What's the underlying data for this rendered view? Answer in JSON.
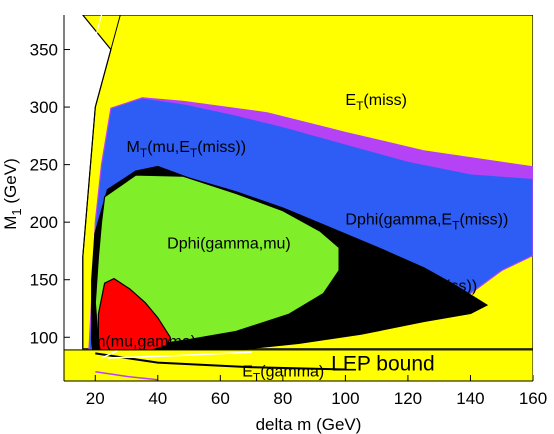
{
  "chart_data": {
    "type": "area",
    "title": "",
    "xlabel": "delta m (GeV)",
    "ylabel": "M1 (GeV)",
    "ylabel_main": "M",
    "ylabel_sub": "1",
    "ylabel_rest": " (GeV)",
    "xlim": [
      10,
      160
    ],
    "ylim": [
      62,
      380
    ],
    "x_ticks": [
      20,
      40,
      60,
      80,
      100,
      120,
      140,
      160
    ],
    "y_ticks": [
      100,
      150,
      200,
      250,
      300,
      350
    ],
    "x_tick_labels": [
      "20",
      "40",
      "60",
      "80",
      "100",
      "120",
      "140",
      "160"
    ],
    "y_tick_labels": [
      "100",
      "150",
      "200",
      "250",
      "300",
      "350"
    ],
    "colors": {
      "et_miss": "#ffff00",
      "mt_mu_et_miss": "#2e5df5",
      "dphi_gamma_et_miss": "#b642f5",
      "dphi_mu_et_miss": "#000000",
      "dphi_gamma_mu": "#80ef2a",
      "m_mu_gamma": "#ff0000",
      "lep_bound": "#ffff00"
    },
    "regions": [
      {
        "id": "et_miss",
        "label_main": "E",
        "label_sub": "T",
        "label_rest": "(miss)",
        "polygon": [
          [
            16,
            380
          ],
          [
            160,
            380
          ],
          [
            160,
            90
          ],
          [
            16,
            90
          ],
          [
            16,
            170
          ],
          [
            20,
            300
          ],
          [
            25,
            350
          ]
        ]
      },
      {
        "id": "dphi_gamma_et_miss",
        "label_main": "Dphi(gamma,E",
        "label_sub": "T",
        "label_rest": "(miss))",
        "polygon": [
          [
            35,
            308
          ],
          [
            48,
            305
          ],
          [
            75,
            295
          ],
          [
            100,
            278
          ],
          [
            125,
            262
          ],
          [
            160,
            248
          ],
          [
            160,
            171
          ],
          [
            140,
            190
          ],
          [
            120,
            210
          ],
          [
            90,
            232
          ],
          [
            60,
            254
          ],
          [
            40,
            278
          ],
          [
            34,
            290
          ]
        ]
      },
      {
        "id": "mt_mu_et_miss",
        "label_main": "M",
        "label_sub": "T",
        "label_rest": "(mu,E",
        "label_sub2": "T",
        "label_rest2": "(miss))",
        "polygon": [
          [
            25,
            299
          ],
          [
            35,
            308
          ],
          [
            48,
            303
          ],
          [
            65,
            293
          ],
          [
            80,
            283
          ],
          [
            100,
            268
          ],
          [
            120,
            253
          ],
          [
            140,
            242
          ],
          [
            160,
            238
          ],
          [
            160,
            171
          ],
          [
            150,
            158
          ],
          [
            140,
            138
          ],
          [
            120,
            112
          ],
          [
            100,
            102
          ],
          [
            80,
            96
          ],
          [
            50,
            91
          ],
          [
            30,
            88
          ],
          [
            20,
            88
          ],
          [
            18,
            90
          ],
          [
            19,
            140
          ],
          [
            20,
            200
          ],
          [
            22,
            250
          ]
        ]
      },
      {
        "id": "dphi_mu_et_miss",
        "label_main": "Dphi(mu,E",
        "label_sub": "T",
        "label_rest": "(miss))",
        "polygon": [
          [
            33,
            244
          ],
          [
            40,
            248
          ],
          [
            50,
            238
          ],
          [
            65,
            226
          ],
          [
            80,
            212
          ],
          [
            95,
            195
          ],
          [
            110,
            178
          ],
          [
            125,
            160
          ],
          [
            135,
            145
          ],
          [
            145,
            128
          ],
          [
            140,
            121
          ],
          [
            125,
            114
          ],
          [
            105,
            103
          ],
          [
            85,
            95
          ],
          [
            60,
            88
          ],
          [
            40,
            78
          ],
          [
            25,
            75
          ],
          [
            20,
            78
          ],
          [
            19,
            95
          ],
          [
            19,
            150
          ],
          [
            20,
            190
          ],
          [
            24,
            228
          ]
        ]
      },
      {
        "id": "dphi_gamma_mu",
        "label_main": "Dphi(gamma,mu)",
        "polygon": [
          [
            23,
            222
          ],
          [
            33,
            241
          ],
          [
            48,
            240
          ],
          [
            65,
            225
          ],
          [
            80,
            210
          ],
          [
            92,
            192
          ],
          [
            98,
            178
          ],
          [
            98,
            158
          ],
          [
            93,
            138
          ],
          [
            82,
            120
          ],
          [
            65,
            105
          ],
          [
            50,
            98
          ],
          [
            35,
            92
          ],
          [
            25,
            90
          ],
          [
            21,
            95
          ],
          [
            20,
            130
          ],
          [
            21,
            170
          ],
          [
            22,
            200
          ]
        ]
      },
      {
        "id": "m_mu_gamma",
        "label_main": "m(mu,gamma)",
        "polygon": [
          [
            23,
            147
          ],
          [
            26,
            151
          ],
          [
            31,
            142
          ],
          [
            36,
            130
          ],
          [
            40,
            117
          ],
          [
            44,
            100
          ],
          [
            43,
            93
          ],
          [
            37,
            88
          ],
          [
            30,
            85
          ],
          [
            22,
            84
          ],
          [
            21,
            95
          ],
          [
            21,
            120
          ]
        ]
      },
      {
        "id": "et_gamma",
        "label_main": "E",
        "label_sub": "T",
        "label_rest": "(gamma)"
      }
    ],
    "lep_bound": {
      "label": "LEP bound",
      "y": 89
    }
  }
}
